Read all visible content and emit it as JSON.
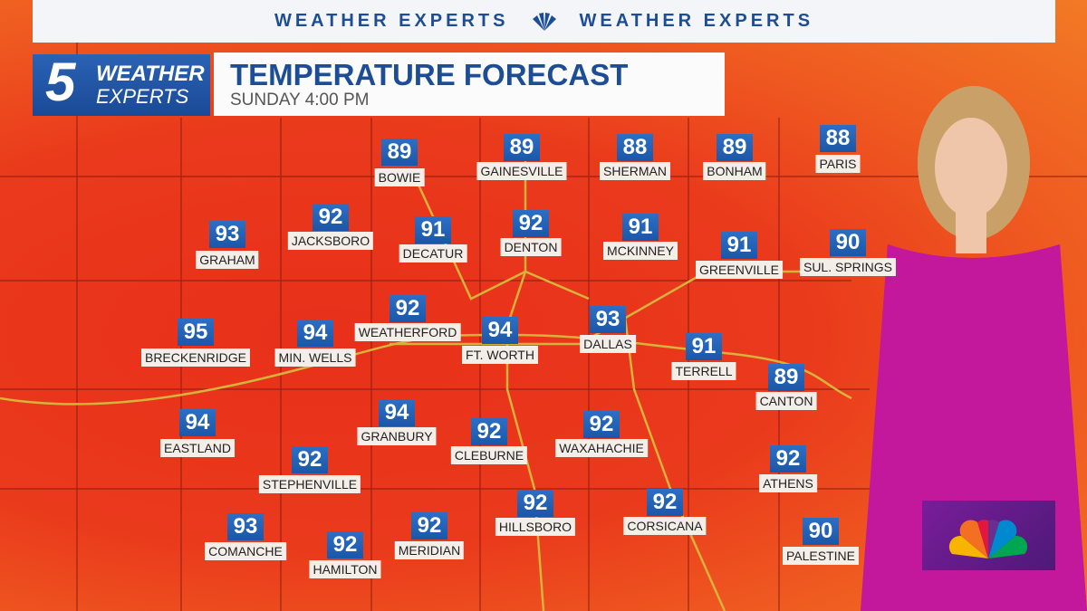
{
  "banner": {
    "left": "WEATHER EXPERTS",
    "right": "WEATHER EXPERTS"
  },
  "logo": {
    "number": "5",
    "line1": "WEATHER",
    "line2": "EXPERTS"
  },
  "header": {
    "title": "TEMPERATURE FORECAST",
    "subtitle": "SUNDAY 4:00 PM"
  },
  "cities": [
    {
      "name": "BOWIE",
      "temp": 89
    },
    {
      "name": "GAINESVILLE",
      "temp": 89
    },
    {
      "name": "SHERMAN",
      "temp": 88
    },
    {
      "name": "BONHAM",
      "temp": 89
    },
    {
      "name": "PARIS",
      "temp": 88
    },
    {
      "name": "JACKSBORO",
      "temp": 92
    },
    {
      "name": "GRAHAM",
      "temp": 93
    },
    {
      "name": "DECATUR",
      "temp": 91
    },
    {
      "name": "DENTON",
      "temp": 92
    },
    {
      "name": "MCKINNEY",
      "temp": 91
    },
    {
      "name": "GREENVILLE",
      "temp": 91
    },
    {
      "name": "SUL. SPRINGS",
      "temp": 90
    },
    {
      "name": "WEATHERFORD",
      "temp": 92
    },
    {
      "name": "BRECKENRIDGE",
      "temp": 95
    },
    {
      "name": "MIN. WELLS",
      "temp": 94
    },
    {
      "name": "FT. WORTH",
      "temp": 94
    },
    {
      "name": "DALLAS",
      "temp": 93
    },
    {
      "name": "TERRELL",
      "temp": 91
    },
    {
      "name": "CANTON",
      "temp": 89
    },
    {
      "name": "EASTLAND",
      "temp": 94
    },
    {
      "name": "GRANBURY",
      "temp": 94
    },
    {
      "name": "CLEBURNE",
      "temp": 92
    },
    {
      "name": "WAXAHACHIE",
      "temp": 92
    },
    {
      "name": "STEPHENVILLE",
      "temp": 92
    },
    {
      "name": "ATHENS",
      "temp": 92
    },
    {
      "name": "HILLSBORO",
      "temp": 92
    },
    {
      "name": "CORSICANA",
      "temp": 92
    },
    {
      "name": "COMANCHE",
      "temp": 93
    },
    {
      "name": "MERIDIAN",
      "temp": 92
    },
    {
      "name": "HAMILTON",
      "temp": 92
    },
    {
      "name": "PALESTINE",
      "temp": 90
    }
  ]
}
